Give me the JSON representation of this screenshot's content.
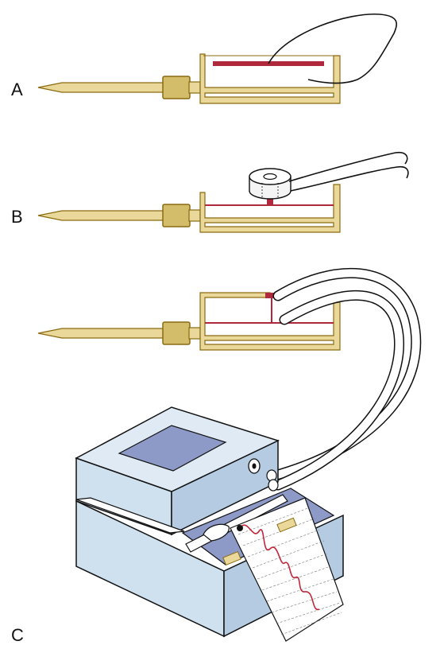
{
  "figure": {
    "labels": {
      "a": "A",
      "b": "B",
      "c": "C"
    },
    "colors": {
      "needle": "#e9d89a",
      "needle_stroke": "#8a6a10",
      "hub": "#d4bd6a",
      "chamber_wall": "#e9d89a",
      "membrane": "#b0283c",
      "tube": "#ffffff",
      "box_top": "#cfe0ef",
      "box_side": "#b4cbe2",
      "box_window": "#8d99c7",
      "chart_paper": "#ffffff",
      "trace": "#c0283c"
    },
    "icons": {
      "needle": "needle-icon",
      "manometer_chamber": "chamber-icon",
      "coil": "coil-icon",
      "recorder": "recorder-icon"
    }
  }
}
